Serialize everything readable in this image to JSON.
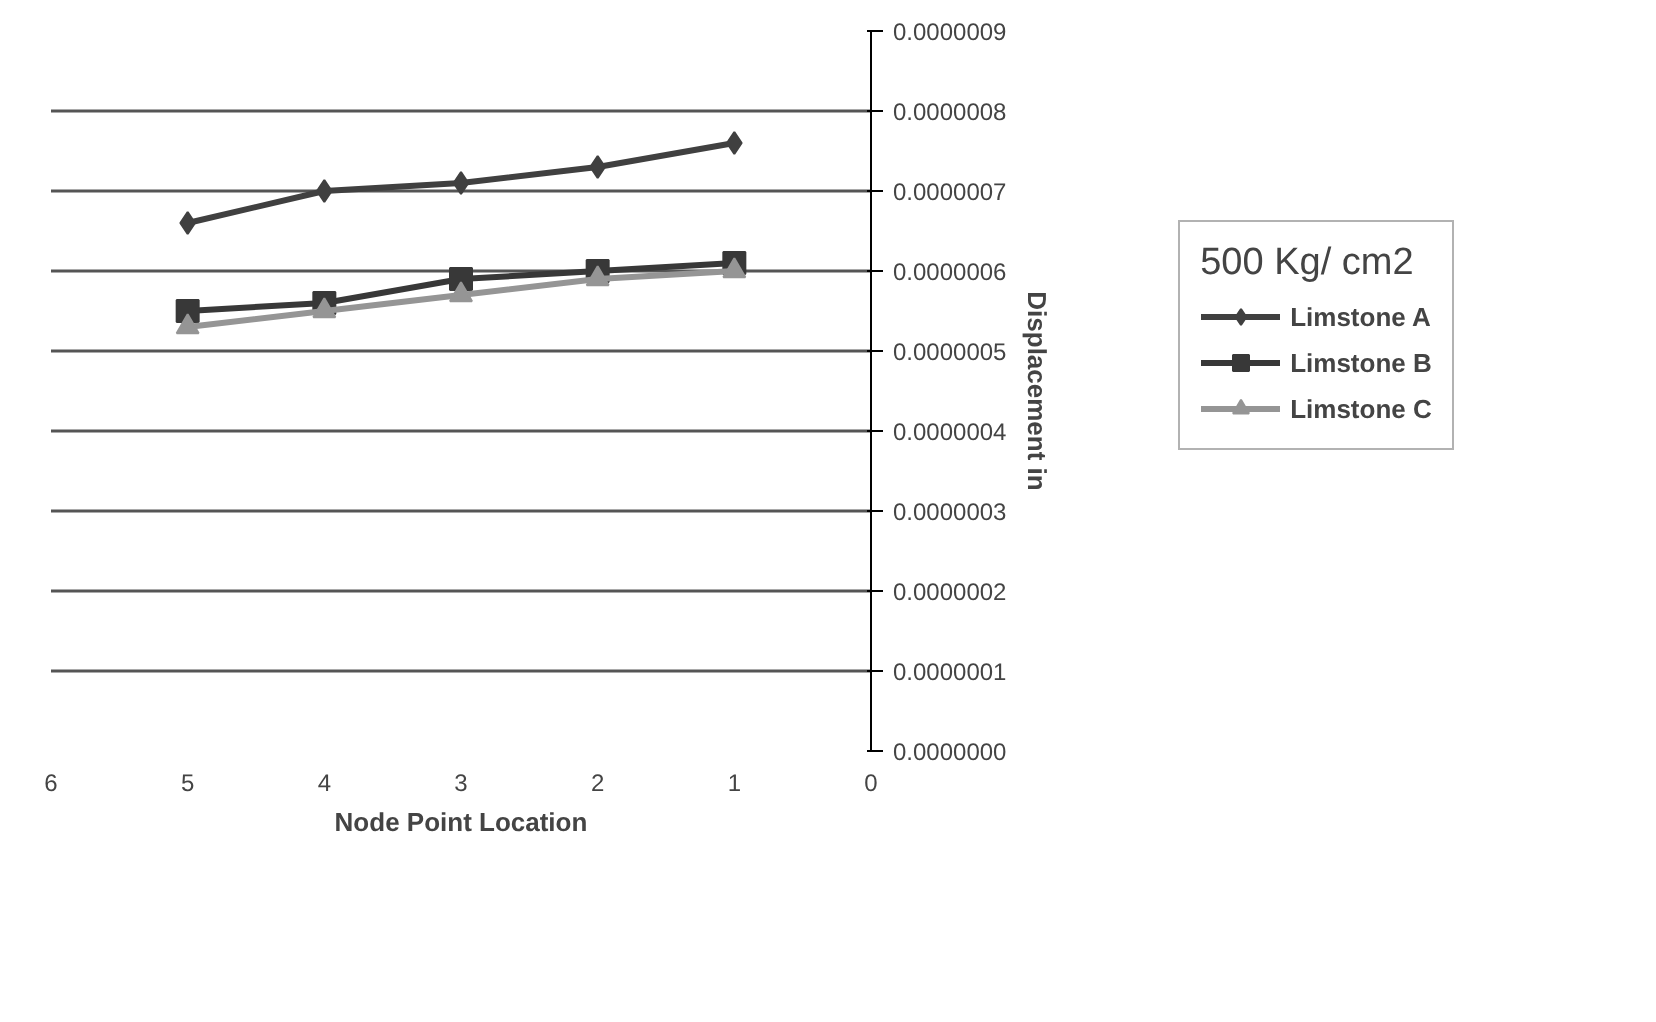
{
  "chart_data": {
    "type": "line",
    "xlabel": "Node Point Location",
    "ylabel": "Displacement in",
    "legend_title": "500 Kg/ cm2",
    "x": [
      5,
      4,
      3,
      2,
      1
    ],
    "series": [
      {
        "name": "Limstone A",
        "color": "#404040",
        "marker": "diamond",
        "values": [
          6.6e-07,
          7e-07,
          7.1e-07,
          7.3e-07,
          7.6e-07
        ]
      },
      {
        "name": "Limstone B",
        "color": "#383838",
        "marker": "square",
        "values": [
          5.5e-07,
          5.6e-07,
          5.9e-07,
          6e-07,
          6.1e-07
        ]
      },
      {
        "name": "Limstone C",
        "color": "#959595",
        "marker": "triangle",
        "values": [
          5.3e-07,
          5.5e-07,
          5.7e-07,
          5.9e-07,
          6e-07
        ]
      }
    ],
    "xlim": [
      6,
      0
    ],
    "xticks": [
      6,
      5,
      4,
      3,
      2,
      1,
      0
    ],
    "ylim": [
      0,
      9e-07
    ],
    "yticks": [
      {
        "value": 0,
        "label": "0.0000000"
      },
      {
        "value": 1e-07,
        "label": "0.0000001"
      },
      {
        "value": 2e-07,
        "label": "0.0000002"
      },
      {
        "value": 3e-07,
        "label": "0.0000003"
      },
      {
        "value": 4e-07,
        "label": "0.0000004"
      },
      {
        "value": 5e-07,
        "label": "0.0000005"
      },
      {
        "value": 6e-07,
        "label": "0.0000006"
      },
      {
        "value": 7e-07,
        "label": "0.0000007"
      },
      {
        "value": 8e-07,
        "label": "0.0000008"
      },
      {
        "value": 9e-07,
        "label": "0.0000009"
      }
    ],
    "grid": "y",
    "legend": "right",
    "line_style": "solid"
  }
}
